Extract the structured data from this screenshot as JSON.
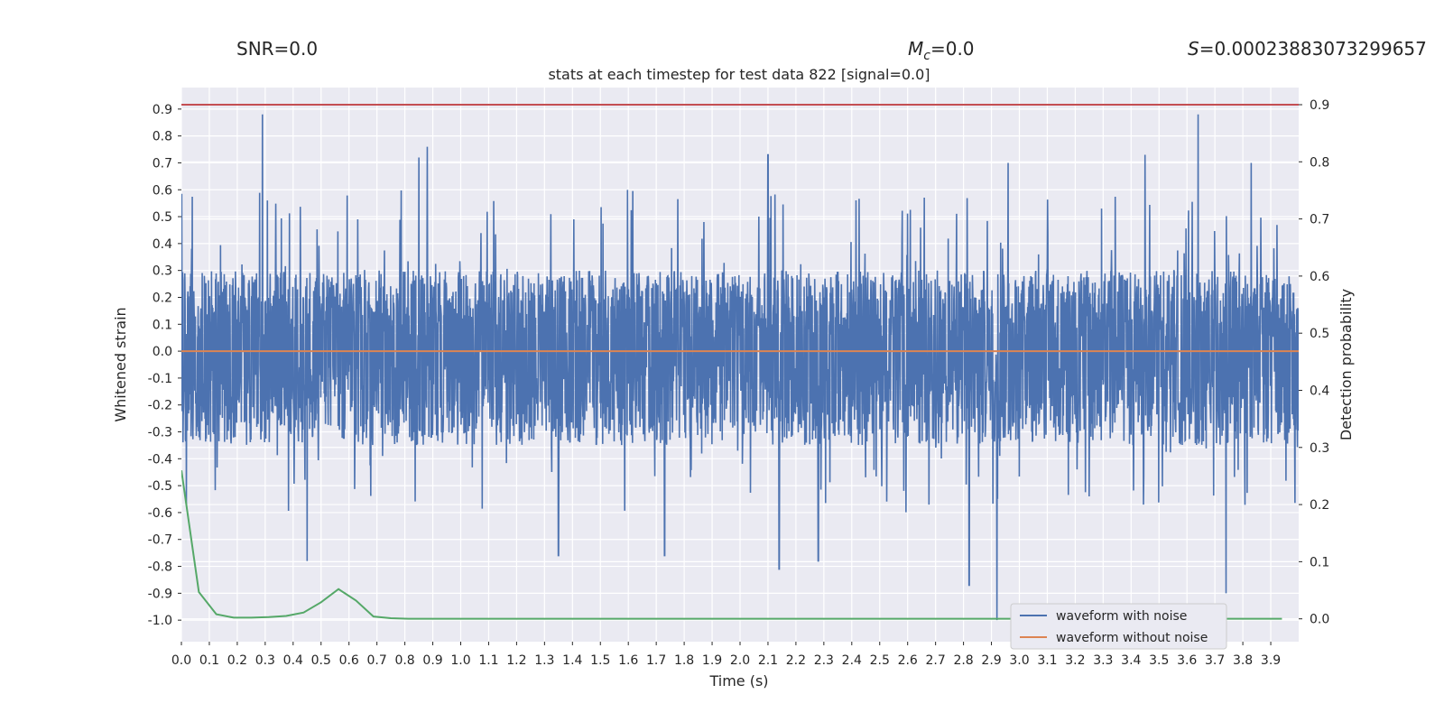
{
  "header": {
    "snr": "SNR=0.0",
    "mc_symbol": "M",
    "mc_sub": "c",
    "mc_value": "=0.0",
    "s_symbol": "S",
    "s_value": "=0.00023883073299657"
  },
  "chart_data": {
    "type": "line",
    "title": "stats at each timestep for test data 822 [signal=0.0]",
    "xlabel": "Time (s)",
    "ylabel_left": "Whitened strain",
    "ylabel_right": "Detection probability",
    "xlim": [
      0.0,
      4.0
    ],
    "ylim_left": [
      -1.08,
      0.98
    ],
    "ylim_right": [
      -0.04,
      0.93
    ],
    "x_ticks": [
      "0.0",
      "0.1",
      "0.2",
      "0.3",
      "0.4",
      "0.5",
      "0.6",
      "0.7",
      "0.8",
      "0.9",
      "1.0",
      "1.1",
      "1.2",
      "1.3",
      "1.4",
      "1.5",
      "1.6",
      "1.7",
      "1.8",
      "1.9",
      "2.0",
      "2.1",
      "2.2",
      "2.3",
      "2.4",
      "2.5",
      "2.6",
      "2.7",
      "2.8",
      "2.9",
      "3.0",
      "3.1",
      "3.2",
      "3.3",
      "3.4",
      "3.5",
      "3.6",
      "3.7",
      "3.8",
      "3.9"
    ],
    "y_ticks_left": [
      "0.9",
      "0.8",
      "0.7",
      "0.6",
      "0.5",
      "0.4",
      "0.3",
      "0.2",
      "0.1",
      "0.0",
      "-0.1",
      "-0.2",
      "-0.3",
      "-0.4",
      "-0.5",
      "-0.6",
      "-0.7",
      "-0.8",
      "-0.9",
      "-1.0"
    ],
    "y_ticks_right": [
      "0.9",
      "0.8",
      "0.7",
      "0.6",
      "0.5",
      "0.4",
      "0.3",
      "0.2",
      "0.1",
      "0.0"
    ],
    "grid": true,
    "legend_position": "bottom-right",
    "threshold_line": {
      "axis": "right",
      "value": 0.9,
      "color": "#c44e52"
    },
    "series": [
      {
        "name": "waveform with noise",
        "axis": "left",
        "color": "#4c72b0",
        "description": "dense noise trace spanning roughly -1.0 to 0.88",
        "peaks": [
          {
            "x": 0.29,
            "y": 0.88
          },
          {
            "x": 3.64,
            "y": 0.88
          },
          {
            "x": 0.88,
            "y": 0.76
          },
          {
            "x": 0.85,
            "y": 0.72
          },
          {
            "x": 2.1,
            "y": 0.73
          },
          {
            "x": 3.45,
            "y": 0.73
          },
          {
            "x": 2.96,
            "y": 0.7
          },
          {
            "x": 3.83,
            "y": 0.7
          },
          {
            "x": 0.45,
            "y": -0.78
          },
          {
            "x": 1.35,
            "y": -0.76
          },
          {
            "x": 1.73,
            "y": -0.76
          },
          {
            "x": 2.14,
            "y": -0.81
          },
          {
            "x": 2.28,
            "y": -0.78
          },
          {
            "x": 2.82,
            "y": -0.87
          },
          {
            "x": 2.92,
            "y": -1.0
          },
          {
            "x": 3.74,
            "y": -0.9
          }
        ]
      },
      {
        "name": "waveform without noise",
        "axis": "left",
        "color": "#dd8452",
        "x": [
          0.0,
          4.0
        ],
        "values": [
          0.0,
          0.0
        ]
      },
      {
        "name": "",
        "axis": "right",
        "color": "#55a868",
        "x": [
          0.0,
          0.0625,
          0.125,
          0.1875,
          0.25,
          0.3125,
          0.375,
          0.4375,
          0.5,
          0.5625,
          0.625,
          0.6875,
          0.75,
          0.8125,
          0.875,
          1.0,
          1.5,
          2.0,
          2.5,
          3.0,
          3.5,
          3.94
        ],
        "values": [
          0.26,
          0.047,
          0.008,
          0.002,
          0.002,
          0.003,
          0.005,
          0.011,
          0.029,
          0.052,
          0.032,
          0.004,
          0.001,
          0.0,
          0.0,
          0.0,
          0.0,
          0.0,
          0.0,
          0.0,
          0.0,
          0.0
        ]
      }
    ]
  }
}
